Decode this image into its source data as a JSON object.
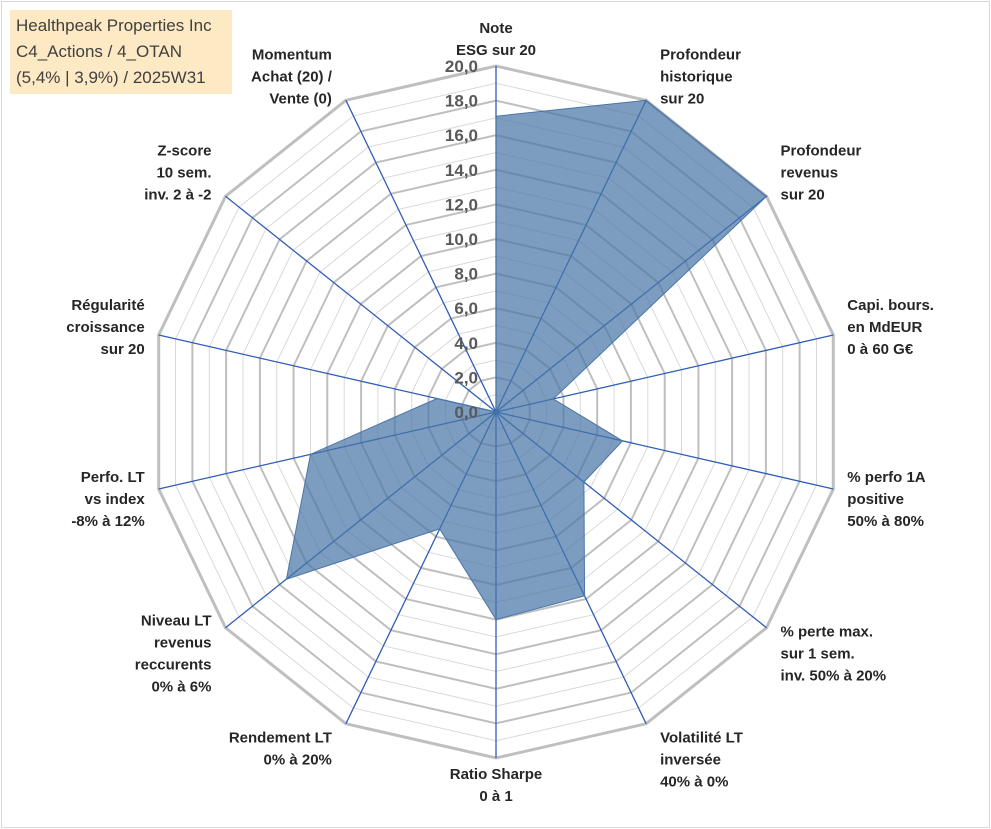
{
  "title_lines": [
    "Healthpeak Properties Inc",
    "C4_Actions / 4_OTAN",
    "(5,4% | 3,9%) / 2025W31"
  ],
  "chart_data": {
    "type": "radar",
    "title": "Healthpeak Properties Inc C4_Actions / 4_OTAN (5,4% | 3,9%) / 2025W31",
    "rlim": [
      0,
      20
    ],
    "tick_step": 2,
    "tick_labels": [
      "0,0",
      "2,0",
      "4,0",
      "6,0",
      "8,0",
      "10,0",
      "12,0",
      "14,0",
      "16,0",
      "18,0",
      "20,0"
    ],
    "grid": true,
    "axes": [
      {
        "label": [
          "Note",
          "ESG sur 20"
        ],
        "value": 17.1
      },
      {
        "label": [
          "Profondeur",
          "historique",
          "sur 20"
        ],
        "value": 20.0
      },
      {
        "label": [
          "Profondeur",
          "revenus",
          "sur 20"
        ],
        "value": 20.0
      },
      {
        "label": [
          "Capi. bours.",
          "en MdEUR",
          "0 à 60 G€"
        ],
        "value": 3.4
      },
      {
        "label": [
          "% perfo 1A",
          "positive",
          "50% à 80%"
        ],
        "value": 7.5
      },
      {
        "label": [
          "% perte max.",
          "sur 1 sem.",
          "inv. 50% à 20%"
        ],
        "value": 6.5
      },
      {
        "label": [
          "Volatilité LT",
          "inversée",
          "40% à 0%"
        ],
        "value": 11.8
      },
      {
        "label": [
          "Ratio Sharpe",
          "0 à 1"
        ],
        "value": 12.0
      },
      {
        "label": [
          "Rendement LT",
          "0% à 20%"
        ],
        "value": 7.5
      },
      {
        "label": [
          "Niveau LT",
          "revenus",
          "reccurents",
          "0% à 6%"
        ],
        "value": 15.5
      },
      {
        "label": [
          "Perfo. LT",
          "vs index",
          "-8% à 12%"
        ],
        "value": 11.0
      },
      {
        "label": [
          "Régularité",
          "croissance",
          "sur 20"
        ],
        "value": 3.5
      },
      {
        "label": [
          "Z-score",
          "10 sem.",
          "inv. 2 à -2"
        ],
        "value": 0.0
      },
      {
        "label": [
          "Momentum",
          "Achat (20) /",
          "Vente (0)"
        ],
        "value": 0.0
      }
    ],
    "colors": {
      "fill": "#4a76a8",
      "fill_opacity": 0.72,
      "spoke": "#2f5db5",
      "grid_major": "#bfbfbf",
      "grid_minor": "#d9d9d9"
    }
  }
}
